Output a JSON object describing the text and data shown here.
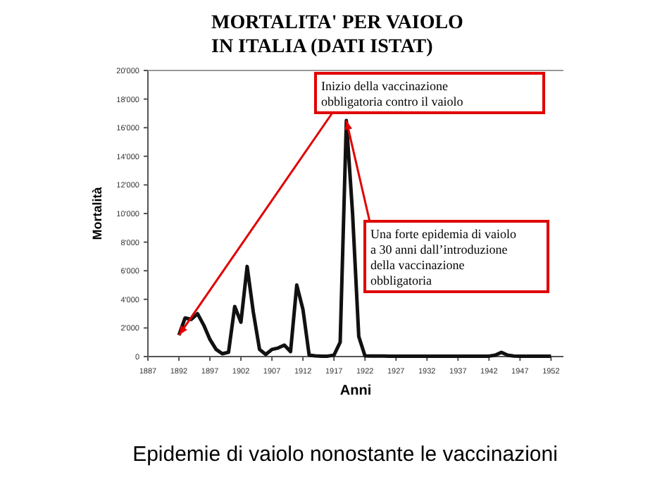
{
  "chart_data": {
    "type": "line",
    "title": "MORTALITA' PER VAIOLO\nIN ITALIA (DATI ISTAT)",
    "xlabel": "Anni",
    "ylabel": "Mortalità",
    "x": [
      1892,
      1893,
      1894,
      1895,
      1896,
      1897,
      1898,
      1899,
      1900,
      1901,
      1902,
      1903,
      1904,
      1905,
      1906,
      1907,
      1908,
      1909,
      1910,
      1911,
      1912,
      1913,
      1914,
      1915,
      1916,
      1917,
      1918,
      1919,
      1920,
      1921,
      1922,
      1923,
      1924,
      1925,
      1926,
      1927,
      1928,
      1929,
      1930,
      1931,
      1932,
      1933,
      1934,
      1935,
      1936,
      1937,
      1938,
      1939,
      1940,
      1941,
      1942,
      1943,
      1944,
      1945,
      1946,
      1947,
      1948,
      1949,
      1950,
      1951,
      1952
    ],
    "series": [
      {
        "color": "#111111",
        "values": [
          1500,
          2700,
          2600,
          3000,
          2200,
          1200,
          500,
          200,
          300,
          3500,
          2400,
          6300,
          3100,
          500,
          150,
          500,
          600,
          800,
          350,
          5000,
          3300,
          100,
          50,
          30,
          30,
          100,
          1000,
          16500,
          10000,
          1400,
          50,
          40,
          40,
          40,
          30,
          30,
          30,
          30,
          30,
          30,
          30,
          30,
          30,
          30,
          30,
          30,
          30,
          30,
          30,
          30,
          30,
          100,
          300,
          100,
          40,
          30,
          30,
          30,
          30,
          30,
          30
        ]
      }
    ],
    "xlim": [
      1887,
      1954
    ],
    "xticks": [
      1887,
      1892,
      1897,
      1902,
      1907,
      1912,
      1917,
      1922,
      1927,
      1932,
      1937,
      1942,
      1947,
      1952
    ],
    "ylim": [
      0,
      20000
    ],
    "yticks": [
      0,
      {
        "value": 2000,
        "label": "2'000"
      },
      {
        "value": 4000,
        "label": "4'000"
      },
      {
        "value": 6000,
        "label": "6'000"
      },
      {
        "value": 8000,
        "label": "8'000"
      },
      {
        "value": 10000,
        "label": "10'000"
      },
      {
        "value": 12000,
        "label": "12'000"
      },
      {
        "value": 14000,
        "label": "14'000"
      },
      {
        "value": 16000,
        "label": "16'000"
      },
      {
        "value": 18000,
        "label": "18'000"
      },
      {
        "value": 20000,
        "label": "20'000"
      }
    ],
    "grid": false,
    "marker": "none",
    "line_style": "solid",
    "annotations": [
      {
        "text": "Inizio della vaccinazione obbligatoria contro il vaiolo",
        "x": 1892,
        "y": 1500
      },
      {
        "text": "Una forte epidemia di vaiolo a 30 anni dall’introduzione della vaccinazione obbligatoria",
        "x": 1919,
        "y": 16500
      },
      "Epidemie di vaiolo nonostante le vaccinazioni"
    ]
  }
}
